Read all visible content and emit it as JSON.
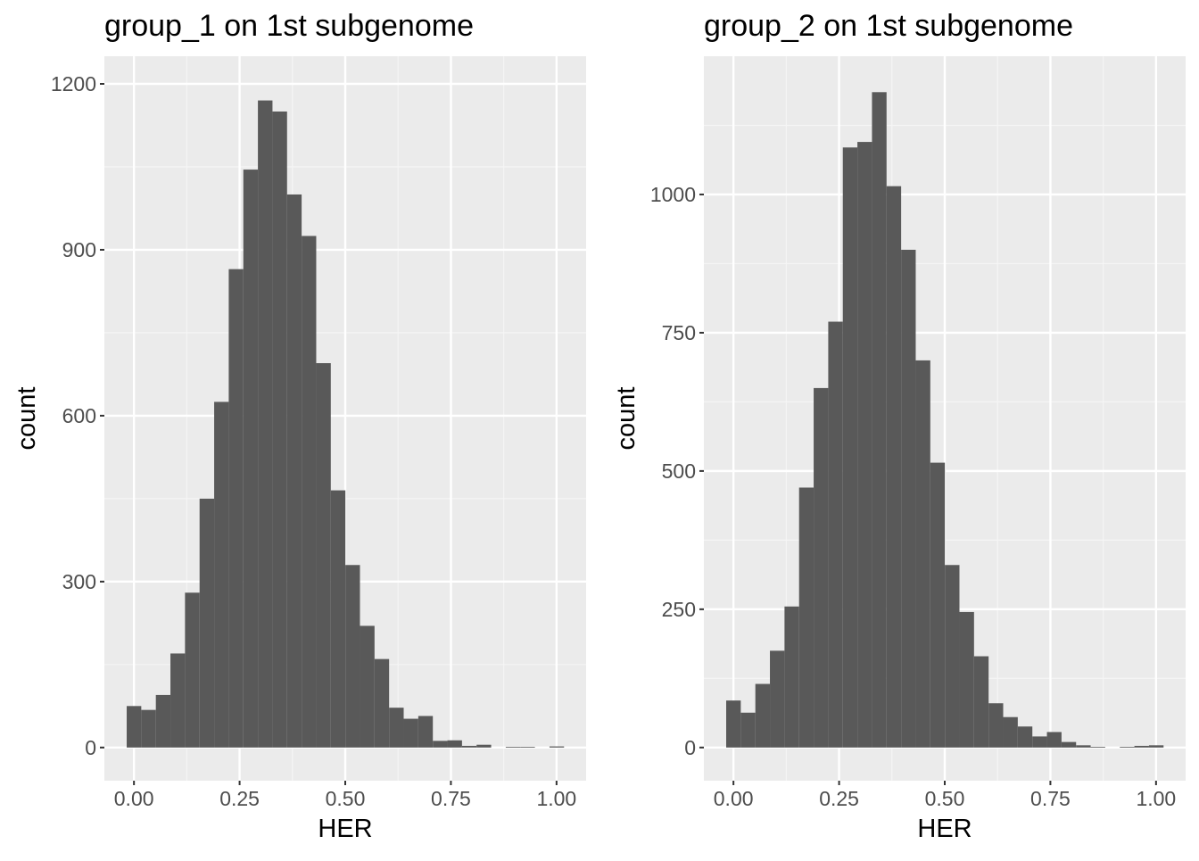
{
  "colors": {
    "panel_background": "#ebebeb",
    "grid_major": "#ffffff",
    "grid_minor": "#f5f5f5",
    "bar_fill": "#595959",
    "tick_color": "#333333",
    "tick_label_color": "#4d4d4d",
    "title_color": "#000000"
  },
  "chart_data": [
    {
      "type": "bar",
      "title": "group_1 on 1st subgenome",
      "xlabel": "HER",
      "ylabel": "count",
      "grid": true,
      "xlim": [
        -0.07,
        1.07
      ],
      "ylim": [
        -60,
        1250
      ],
      "x_ticks": [
        0,
        0.25,
        0.5,
        0.75,
        1
      ],
      "x_tick_labels": [
        "0.00",
        "0.25",
        "0.50",
        "0.75",
        "1.00"
      ],
      "y_ticks": [
        0,
        300,
        600,
        900,
        1200
      ],
      "y_tick_labels": [
        "0",
        "300",
        "600",
        "900",
        "1200"
      ],
      "bin_width": 0.0345,
      "bin_start": -0.0172,
      "values": [
        75,
        68,
        95,
        170,
        280,
        450,
        625,
        865,
        1045,
        1170,
        1150,
        1000,
        925,
        695,
        465,
        330,
        220,
        160,
        72,
        52,
        57,
        12,
        13,
        3,
        5,
        0,
        1,
        1,
        0,
        2
      ]
    },
    {
      "type": "bar",
      "title": "group_2 on 1st subgenome",
      "xlabel": "HER",
      "ylabel": "count",
      "grid": true,
      "xlim": [
        -0.07,
        1.07
      ],
      "ylim": [
        -60,
        1250
      ],
      "x_ticks": [
        0,
        0.25,
        0.5,
        0.75,
        1
      ],
      "x_tick_labels": [
        "0.00",
        "0.25",
        "0.50",
        "0.75",
        "1.00"
      ],
      "y_ticks": [
        0,
        250,
        500,
        750,
        1000
      ],
      "y_tick_labels": [
        "0",
        "250",
        "500",
        "750",
        "1000"
      ],
      "bin_width": 0.0345,
      "bin_start": -0.0172,
      "values": [
        85,
        63,
        115,
        175,
        255,
        470,
        650,
        770,
        1085,
        1095,
        1185,
        1015,
        900,
        700,
        515,
        330,
        245,
        165,
        80,
        55,
        38,
        20,
        28,
        10,
        4,
        1,
        0,
        1,
        3,
        4
      ]
    }
  ]
}
